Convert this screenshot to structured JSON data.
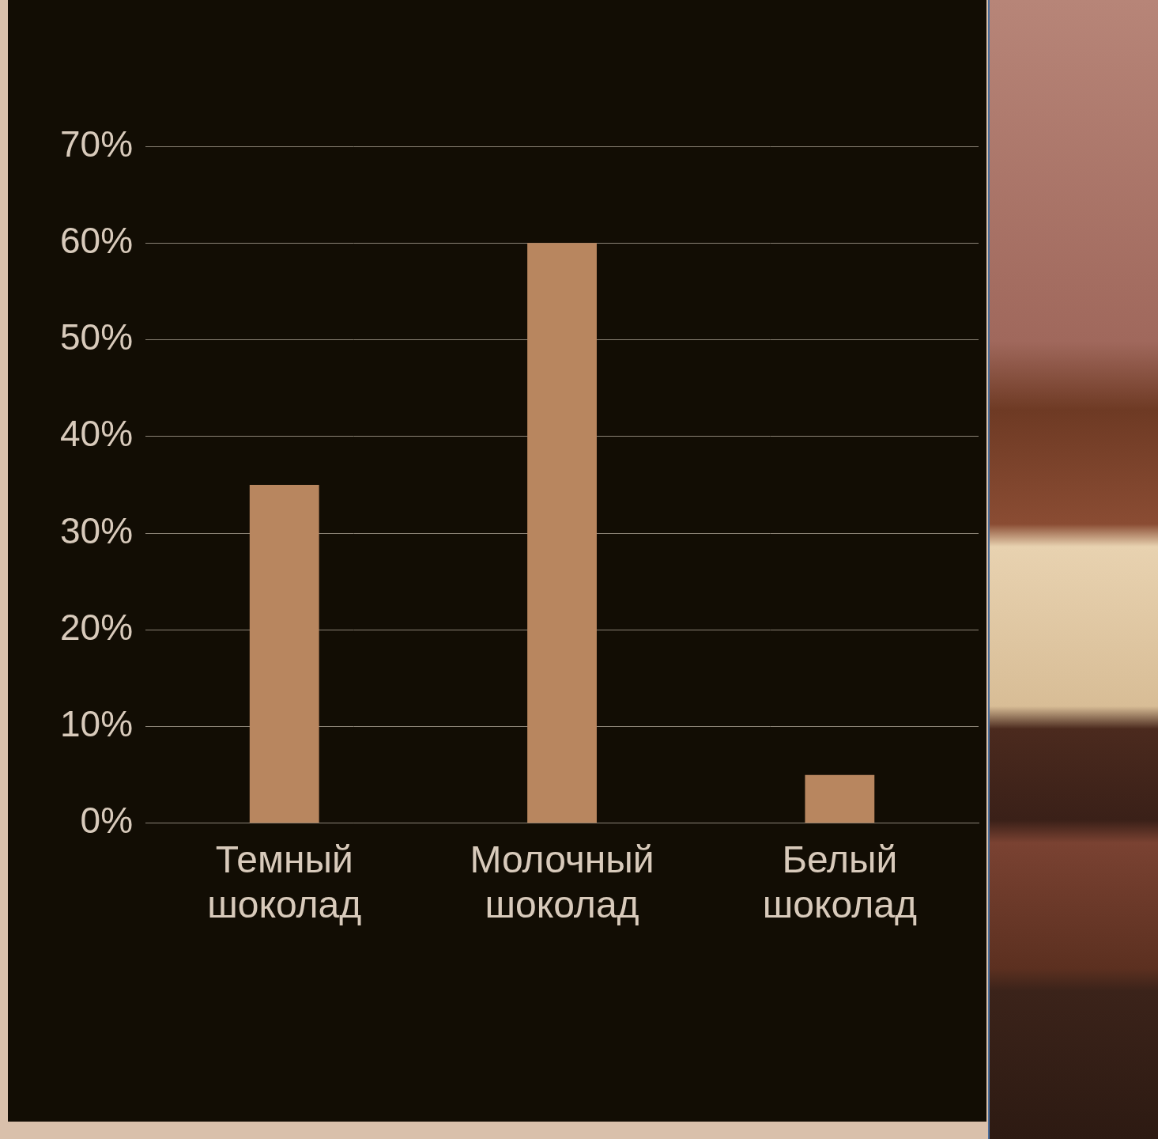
{
  "chart_data": {
    "type": "bar",
    "categories": [
      "Темный шоколад",
      "Молочный шоколад",
      "Белый шоколад"
    ],
    "values": [
      35,
      60,
      5
    ],
    "color": "#b8865f",
    "ylim": [
      0,
      70
    ],
    "yticks": [
      {
        "value": 0,
        "label": "0%"
      },
      {
        "value": 10,
        "label": "10%"
      },
      {
        "value": 20,
        "label": "20%"
      },
      {
        "value": 30,
        "label": "30%"
      },
      {
        "value": 40,
        "label": "40%"
      },
      {
        "value": 50,
        "label": "50%"
      },
      {
        "value": 60,
        "label": "60%"
      },
      {
        "value": 70,
        "label": "70%"
      }
    ],
    "grid": true
  }
}
